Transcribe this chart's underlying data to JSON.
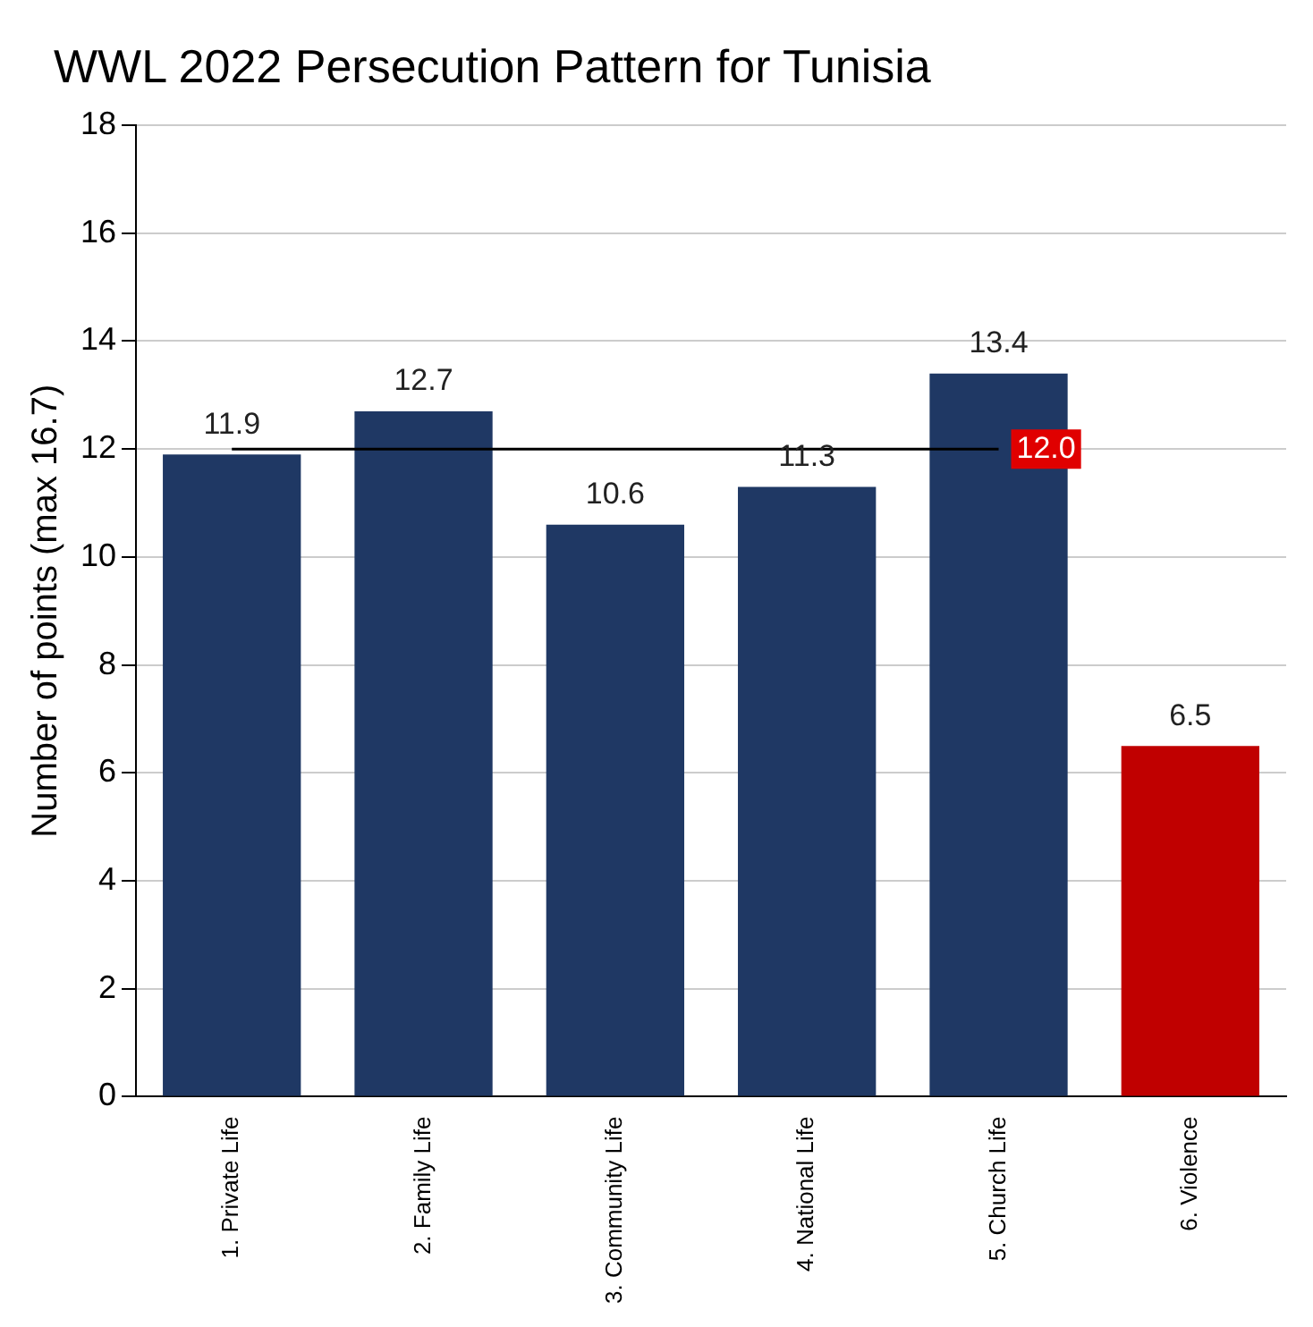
{
  "chart_data": {
    "type": "bar",
    "title": "WWL 2022 Persecution Pattern for Tunisia",
    "ylabel": "Number of points (max 16.7)",
    "categories": [
      "1. Private Life",
      "2. Family Life",
      "3. Community Life",
      "4. National Life",
      "5. Church Life",
      "6. Violence"
    ],
    "values": [
      11.9,
      12.7,
      10.6,
      11.3,
      13.4,
      6.5
    ],
    "colors": [
      "#1f3864",
      "#1f3864",
      "#1f3864",
      "#1f3864",
      "#1f3864",
      "#c00000"
    ],
    "ylim": [
      0,
      18
    ],
    "yticks": [
      0,
      2,
      4,
      6,
      8,
      10,
      12,
      14,
      16,
      18
    ],
    "grid": "y",
    "data_labels": true,
    "legend": false,
    "ref_lines": [
      {
        "axis": "y",
        "value": 12.0,
        "label": "12.0",
        "color": "#000000"
      }
    ]
  }
}
